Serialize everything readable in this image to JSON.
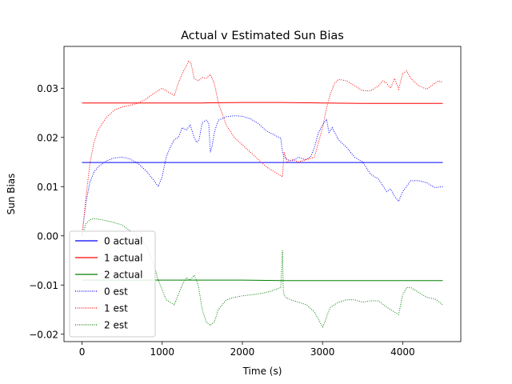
{
  "chart_data": {
    "type": "line",
    "title": "Actual v Estimated Sun Bias",
    "xlabel": "Time (s)",
    "ylabel": "Sun Bias",
    "xlim": [
      -225,
      4725
    ],
    "ylim": [
      -0.0215,
      0.0385
    ],
    "xticks": [
      0,
      1000,
      2000,
      3000,
      4000
    ],
    "xtick_labels": [
      "0",
      "1000",
      "2000",
      "3000",
      "4000"
    ],
    "yticks": [
      -0.02,
      -0.01,
      0.0,
      0.01,
      0.02,
      0.03
    ],
    "ytick_labels": [
      "−0.02",
      "−0.01",
      "0.00",
      "0.01",
      "0.02",
      "0.03"
    ],
    "grid": false,
    "legend_location": "lower-left",
    "series": [
      {
        "name": "0 actual",
        "color": "#0000ff",
        "style": "solid",
        "x": [
          0,
          1000,
          2000,
          3000,
          4500
        ],
        "y": [
          0.0149,
          0.0149,
          0.0149,
          0.0149,
          0.0149
        ]
      },
      {
        "name": "1 actual",
        "color": "#ff0000",
        "style": "solid",
        "x": [
          0,
          500,
          1000,
          1500,
          2000,
          2500,
          3000,
          3500,
          4000,
          4500
        ],
        "y": [
          0.027,
          0.027,
          0.027,
          0.027,
          0.0271,
          0.0271,
          0.027,
          0.0269,
          0.0269,
          0.0269
        ]
      },
      {
        "name": "2 actual",
        "color": "#008000",
        "style": "solid",
        "x": [
          0,
          500,
          1000,
          1500,
          2000,
          2500,
          3000,
          3500,
          4000,
          4500
        ],
        "y": [
          -0.009,
          -0.009,
          -0.009,
          -0.009,
          -0.009,
          -0.0091,
          -0.0091,
          -0.0091,
          -0.0091,
          -0.0091
        ]
      },
      {
        "name": "0 est",
        "color": "#0000ff",
        "style": "dotted",
        "x": [
          0,
          50,
          100,
          150,
          200,
          300,
          400,
          500,
          600,
          700,
          800,
          900,
          950,
          1000,
          1050,
          1100,
          1150,
          1200,
          1250,
          1300,
          1350,
          1400,
          1430,
          1460,
          1500,
          1550,
          1580,
          1600,
          1620,
          1650,
          1700,
          1800,
          1900,
          2000,
          2100,
          2200,
          2300,
          2400,
          2480,
          2500,
          2520,
          2560,
          2620,
          2700,
          2780,
          2850,
          2900,
          2950,
          3000,
          3050,
          3080,
          3120,
          3200,
          3300,
          3400,
          3500,
          3600,
          3700,
          3800,
          3850,
          3900,
          3950,
          4000,
          4100,
          4200,
          4300,
          4400,
          4500
        ],
        "y": [
          0.0,
          0.007,
          0.011,
          0.013,
          0.014,
          0.0152,
          0.0158,
          0.016,
          0.0156,
          0.0147,
          0.0132,
          0.0112,
          0.01,
          0.012,
          0.016,
          0.018,
          0.0195,
          0.02,
          0.022,
          0.0215,
          0.0225,
          0.02,
          0.019,
          0.0195,
          0.023,
          0.0235,
          0.023,
          0.017,
          0.018,
          0.021,
          0.0235,
          0.0242,
          0.0244,
          0.0243,
          0.0238,
          0.0228,
          0.0213,
          0.0205,
          0.0198,
          0.017,
          0.016,
          0.0155,
          0.0152,
          0.016,
          0.0155,
          0.016,
          0.018,
          0.021,
          0.0225,
          0.0237,
          0.021,
          0.022,
          0.0195,
          0.018,
          0.016,
          0.015,
          0.0125,
          0.0115,
          0.009,
          0.0095,
          0.008,
          0.007,
          0.009,
          0.0112,
          0.0112,
          0.0108,
          0.0098,
          0.01
        ]
      },
      {
        "name": "1 est",
        "color": "#ff0000",
        "style": "dotted",
        "x": [
          0,
          50,
          100,
          150,
          200,
          300,
          400,
          500,
          600,
          700,
          800,
          900,
          1000,
          1050,
          1100,
          1150,
          1200,
          1250,
          1300,
          1330,
          1360,
          1380,
          1400,
          1450,
          1500,
          1550,
          1600,
          1650,
          1700,
          1800,
          1900,
          2000,
          2100,
          2200,
          2300,
          2400,
          2500,
          2520,
          2560,
          2620,
          2700,
          2800,
          2900,
          3000,
          3050,
          3100,
          3150,
          3200,
          3300,
          3400,
          3500,
          3600,
          3700,
          3750,
          3800,
          3850,
          3900,
          3950,
          4000,
          4050,
          4100,
          4200,
          4300,
          4400,
          4450,
          4500
        ],
        "y": [
          0.0,
          0.008,
          0.015,
          0.019,
          0.0215,
          0.024,
          0.0255,
          0.0262,
          0.0265,
          0.027,
          0.0278,
          0.029,
          0.03,
          0.0295,
          0.029,
          0.0285,
          0.031,
          0.033,
          0.0345,
          0.0355,
          0.035,
          0.0335,
          0.032,
          0.0315,
          0.0322,
          0.032,
          0.0328,
          0.031,
          0.027,
          0.0225,
          0.02,
          0.0185,
          0.017,
          0.0155,
          0.014,
          0.013,
          0.012,
          0.017,
          0.015,
          0.0155,
          0.015,
          0.0155,
          0.016,
          0.022,
          0.026,
          0.029,
          0.031,
          0.0318,
          0.0315,
          0.0305,
          0.0295,
          0.0295,
          0.0305,
          0.0315,
          0.031,
          0.03,
          0.032,
          0.0298,
          0.033,
          0.0335,
          0.032,
          0.0305,
          0.0298,
          0.031,
          0.0315,
          0.0312
        ]
      },
      {
        "name": "2 est",
        "color": "#008000",
        "style": "dotted",
        "x": [
          0,
          50,
          100,
          150,
          200,
          300,
          400,
          500,
          600,
          700,
          800,
          900,
          950,
          1000,
          1050,
          1100,
          1150,
          1200,
          1250,
          1300,
          1350,
          1400,
          1450,
          1500,
          1550,
          1600,
          1650,
          1700,
          1800,
          1900,
          2000,
          2100,
          2200,
          2300,
          2400,
          2480,
          2500,
          2510,
          2520,
          2540,
          2600,
          2700,
          2800,
          2900,
          3000,
          3030,
          3060,
          3100,
          3200,
          3300,
          3400,
          3500,
          3600,
          3700,
          3800,
          3850,
          3900,
          3950,
          4000,
          4050,
          4100,
          4200,
          4300,
          4400,
          4500
        ],
        "y": [
          0.0,
          0.0025,
          0.0033,
          0.0035,
          0.0034,
          0.0031,
          0.0027,
          0.0022,
          0.001,
          -0.0002,
          -0.002,
          -0.006,
          -0.009,
          -0.011,
          -0.013,
          -0.0135,
          -0.014,
          -0.012,
          -0.01,
          -0.0085,
          -0.009,
          -0.008,
          -0.01,
          -0.015,
          -0.0175,
          -0.0182,
          -0.0175,
          -0.015,
          -0.013,
          -0.0125,
          -0.0122,
          -0.012,
          -0.0118,
          -0.0115,
          -0.011,
          -0.0105,
          -0.003,
          -0.011,
          -0.012,
          -0.0125,
          -0.013,
          -0.0135,
          -0.014,
          -0.0155,
          -0.0185,
          -0.0175,
          -0.016,
          -0.0145,
          -0.0135,
          -0.013,
          -0.013,
          -0.0135,
          -0.0132,
          -0.0132,
          -0.0145,
          -0.015,
          -0.0155,
          -0.016,
          -0.012,
          -0.0105,
          -0.0105,
          -0.0115,
          -0.0125,
          -0.0128,
          -0.014
        ]
      }
    ]
  }
}
